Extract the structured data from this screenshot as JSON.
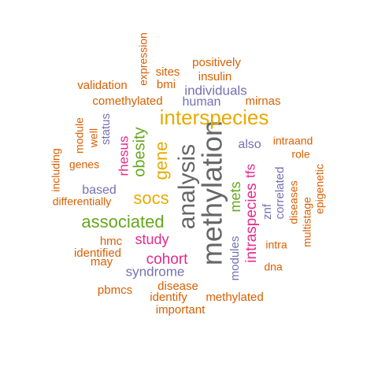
{
  "colors": {
    "orange": "#D95F02",
    "purple": "#7570B3",
    "magenta": "#E7298A",
    "green": "#66A61E",
    "gold": "#E6AB02",
    "gray": "#666666",
    "background": "#FFFFFF"
  },
  "words": [
    {
      "text": "methylation",
      "color": "gray"
    },
    {
      "text": "analysis",
      "color": "gray"
    },
    {
      "text": "interspecies",
      "color": "gold"
    },
    {
      "text": "associated",
      "color": "green"
    },
    {
      "text": "gene",
      "color": "gold"
    },
    {
      "text": "socs",
      "color": "gold"
    },
    {
      "text": "obesity",
      "color": "green"
    },
    {
      "text": "intraspecies",
      "color": "magenta"
    },
    {
      "text": "mets",
      "color": "green"
    },
    {
      "text": "rhesus",
      "color": "magenta"
    },
    {
      "text": "cohort",
      "color": "magenta"
    },
    {
      "text": "study",
      "color": "magenta"
    },
    {
      "text": "tfs",
      "color": "magenta"
    },
    {
      "text": "syndrome",
      "color": "purple"
    },
    {
      "text": "individuals",
      "color": "purple"
    },
    {
      "text": "human",
      "color": "purple"
    },
    {
      "text": "also",
      "color": "purple"
    },
    {
      "text": "based",
      "color": "purple"
    },
    {
      "text": "status",
      "color": "purple"
    },
    {
      "text": "modules",
      "color": "purple"
    },
    {
      "text": "correlated",
      "color": "purple"
    },
    {
      "text": "znf",
      "color": "purple"
    },
    {
      "text": "positively",
      "color": "orange"
    },
    {
      "text": "insulin",
      "color": "orange"
    },
    {
      "text": "sites",
      "color": "orange"
    },
    {
      "text": "bmi",
      "color": "orange"
    },
    {
      "text": "expression",
      "color": "orange"
    },
    {
      "text": "validation",
      "color": "orange"
    },
    {
      "text": "comethylated",
      "color": "orange"
    },
    {
      "text": "mirnas",
      "color": "orange"
    },
    {
      "text": "module",
      "color": "orange"
    },
    {
      "text": "well",
      "color": "orange"
    },
    {
      "text": "genes",
      "color": "orange"
    },
    {
      "text": "including",
      "color": "orange"
    },
    {
      "text": "differentially",
      "color": "orange"
    },
    {
      "text": "intraand",
      "color": "orange"
    },
    {
      "text": "role",
      "color": "orange"
    },
    {
      "text": "epigenetic",
      "color": "orange"
    },
    {
      "text": "diseases",
      "color": "orange"
    },
    {
      "text": "multistage",
      "color": "orange"
    },
    {
      "text": "hmc",
      "color": "orange"
    },
    {
      "text": "identified",
      "color": "orange"
    },
    {
      "text": "may",
      "color": "orange"
    },
    {
      "text": "intra",
      "color": "orange"
    },
    {
      "text": "dna",
      "color": "orange"
    },
    {
      "text": "pbmcs",
      "color": "orange"
    },
    {
      "text": "disease",
      "color": "orange"
    },
    {
      "text": "identify",
      "color": "orange"
    },
    {
      "text": "methylated",
      "color": "orange"
    },
    {
      "text": "important",
      "color": "orange"
    }
  ]
}
